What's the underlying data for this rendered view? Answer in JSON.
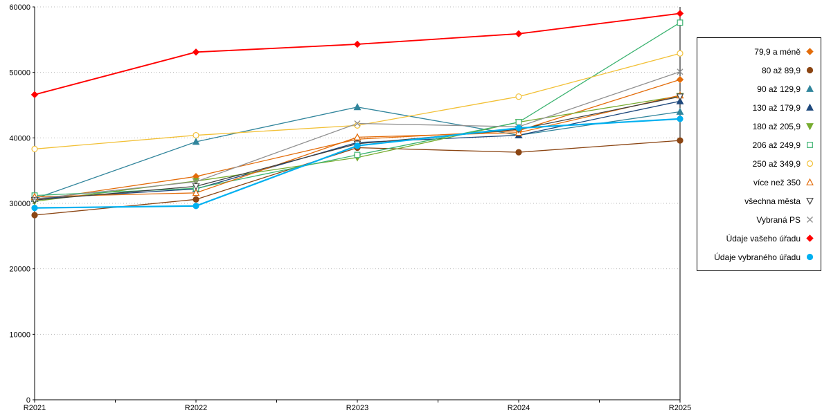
{
  "chart_data": {
    "type": "line",
    "title": "",
    "xlabel": "",
    "ylabel": "",
    "categories": [
      "R2021",
      "R2022",
      "R2023",
      "R2024",
      "R2025"
    ],
    "ylim": [
      0,
      60000
    ],
    "ytick_step": 10000,
    "grid": "horizontal-dotted",
    "legend_position": "right",
    "series": [
      {
        "name": "79,9 a méně",
        "color": "#E36C0A",
        "marker": "diamond",
        "fill": true,
        "width": 1.3,
        "values": [
          30500,
          34100,
          39800,
          41100,
          48900
        ]
      },
      {
        "name": "80 až 89,9",
        "color": "#8B4513",
        "marker": "circle",
        "fill": true,
        "width": 1.3,
        "values": [
          28200,
          30600,
          38500,
          37800,
          39600
        ]
      },
      {
        "name": "90 až 129,9",
        "color": "#31859C",
        "marker": "triangle-up",
        "fill": true,
        "width": 1.3,
        "values": [
          30700,
          39400,
          44700,
          40400,
          44000
        ]
      },
      {
        "name": "130 až 179,9",
        "color": "#1F497D",
        "marker": "triangle-up",
        "fill": true,
        "width": 1.3,
        "values": [
          30700,
          32200,
          39300,
          40400,
          45600
        ]
      },
      {
        "name": "180 až 205,9",
        "color": "#77AC30",
        "marker": "triangle-down",
        "fill": true,
        "width": 1.3,
        "values": [
          30300,
          33400,
          37000,
          42400,
          46400
        ]
      },
      {
        "name": "206 až 249,9",
        "color": "#3CB371",
        "marker": "square",
        "fill": false,
        "width": 1.3,
        "values": [
          31200,
          32300,
          37400,
          42400,
          57600
        ]
      },
      {
        "name": "250 až 349,9",
        "color": "#F2C036",
        "marker": "circle",
        "fill": false,
        "width": 1.3,
        "values": [
          38300,
          40400,
          41900,
          46300,
          52900
        ]
      },
      {
        "name": "více než 350",
        "color": "#E36C0A",
        "marker": "triangle-up",
        "fill": false,
        "width": 1.3,
        "values": [
          31000,
          31600,
          40100,
          40800,
          46500
        ]
      },
      {
        "name": "všechna města",
        "color": "#404040",
        "marker": "triangle-down",
        "fill": false,
        "width": 1.3,
        "values": [
          30500,
          32600,
          39100,
          41300,
          46300
        ]
      },
      {
        "name": "Vybraná PS",
        "color": "#909090",
        "marker": "x",
        "fill": false,
        "width": 1.3,
        "values": [
          30700,
          33300,
          42200,
          41700,
          50100
        ]
      },
      {
        "name": "Údaje vašeho úřadu",
        "color": "#FF0000",
        "marker": "diamond",
        "fill": true,
        "width": 1.9,
        "values": [
          46600,
          53100,
          54300,
          55900,
          59000
        ]
      },
      {
        "name": "Údaje vybraného úřadu",
        "color": "#00B0F0",
        "marker": "circle",
        "fill": true,
        "width": 2.2,
        "values": [
          29300,
          29600,
          38800,
          41500,
          42900
        ]
      }
    ]
  },
  "axis": {
    "y_labels": [
      "0",
      "10000",
      "20000",
      "30000",
      "40000",
      "50000",
      "60000"
    ],
    "x_labels": [
      "R2021",
      "R2022",
      "R2023",
      "R2024",
      "R2025"
    ]
  },
  "colors": {
    "background": "#FFFFFF",
    "gridline": "#B8B8B8",
    "axis": "#000000",
    "legend_border": "#000000"
  }
}
